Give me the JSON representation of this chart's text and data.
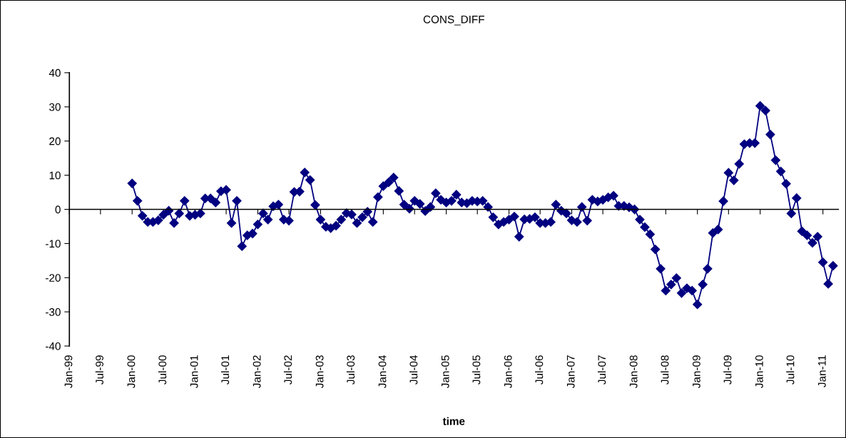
{
  "chart_data": {
    "type": "line",
    "title": "CONS_DIFF",
    "xlabel": "time",
    "x": [
      "2000-01",
      "2000-02",
      "2000-03",
      "2000-04",
      "2000-05",
      "2000-06",
      "2000-07",
      "2000-08",
      "2000-09",
      "2000-10",
      "2000-11",
      "2000-12",
      "2001-01",
      "2001-02",
      "2001-03",
      "2001-04",
      "2001-05",
      "2001-06",
      "2001-07",
      "2001-08",
      "2001-09",
      "2001-10",
      "2001-11",
      "2001-12",
      "2002-01",
      "2002-02",
      "2002-03",
      "2002-04",
      "2002-05",
      "2002-06",
      "2002-07",
      "2002-08",
      "2002-09",
      "2002-10",
      "2002-11",
      "2002-12",
      "2003-01",
      "2003-02",
      "2003-03",
      "2003-04",
      "2003-05",
      "2003-06",
      "2003-07",
      "2003-08",
      "2003-09",
      "2003-10",
      "2003-11",
      "2003-12",
      "2004-01",
      "2004-02",
      "2004-03",
      "2004-04",
      "2004-05",
      "2004-06",
      "2004-07",
      "2004-08",
      "2004-09",
      "2004-10",
      "2004-11",
      "2004-12",
      "2005-01",
      "2005-02",
      "2005-03",
      "2005-04",
      "2005-05",
      "2005-06",
      "2005-07",
      "2005-08",
      "2005-09",
      "2005-10",
      "2005-11",
      "2005-12",
      "2006-01",
      "2006-02",
      "2006-03",
      "2006-04",
      "2006-05",
      "2006-06",
      "2006-07",
      "2006-08",
      "2006-09",
      "2006-10",
      "2006-11",
      "2006-12",
      "2007-01",
      "2007-02",
      "2007-03",
      "2007-04",
      "2007-05",
      "2007-06",
      "2007-07",
      "2007-08",
      "2007-09",
      "2007-10",
      "2007-11",
      "2007-12",
      "2008-01",
      "2008-02",
      "2008-03",
      "2008-04",
      "2008-05",
      "2008-06",
      "2008-07",
      "2008-08",
      "2008-09",
      "2008-10",
      "2008-11",
      "2008-12",
      "2009-01",
      "2009-02",
      "2009-03",
      "2009-04",
      "2009-05",
      "2009-06",
      "2009-07",
      "2009-08",
      "2009-09",
      "2009-10",
      "2009-11",
      "2009-12",
      "2010-01",
      "2010-02",
      "2010-03",
      "2010-04",
      "2010-05",
      "2010-06",
      "2010-07",
      "2010-08",
      "2010-09",
      "2010-10",
      "2010-11",
      "2010-12",
      "2011-01",
      "2011-02",
      "2011-03"
    ],
    "series": [
      {
        "color": "#000080",
        "values": [
          7.6,
          2.5,
          -1.9,
          -3.7,
          -3.7,
          -3.2,
          -1.6,
          -0.4,
          -4.0,
          -1.2,
          2.5,
          -1.9,
          -1.6,
          -1.2,
          3.2,
          3.2,
          2.0,
          5.3,
          5.7,
          -4.0,
          2.5,
          -10.8,
          -7.6,
          -7.1,
          -4.4,
          -1.2,
          -3.0,
          0.9,
          1.4,
          -3.0,
          -3.3,
          5.1,
          5.2,
          10.8,
          8.6,
          1.3,
          -3.0,
          -5.1,
          -5.5,
          -4.8,
          -3.0,
          -1.1,
          -1.5,
          -4.0,
          -2.3,
          -0.7,
          -3.7,
          3.6,
          6.8,
          7.9,
          9.3,
          5.4,
          1.4,
          0.2,
          2.5,
          1.6,
          -0.5,
          0.7,
          4.7,
          2.8,
          2.0,
          2.5,
          4.3,
          2.0,
          1.8,
          2.5,
          2.3,
          2.5,
          0.7,
          -2.3,
          -4.4,
          -3.7,
          -3.0,
          -2.1,
          -8.0,
          -2.9,
          -2.8,
          -2.3,
          -4.0,
          -4.0,
          -3.7,
          1.4,
          -0.4,
          -1.2,
          -3.2,
          -3.7,
          0.7,
          -3.3,
          2.8,
          2.3,
          2.8,
          3.5,
          4.0,
          1.0,
          1.0,
          0.6,
          0.0,
          -3.0,
          -5.2,
          -7.3,
          -11.7,
          -17.4,
          -23.8,
          -22.0,
          -20.1,
          -24.5,
          -23.1,
          -23.8,
          -27.8,
          -22.0,
          -17.4,
          -6.9,
          -5.9,
          2.4,
          10.7,
          8.5,
          13.3,
          19.1,
          19.4,
          19.4,
          30.3,
          28.9,
          21.9,
          14.4,
          11.1,
          7.5,
          -1.2,
          3.3,
          -6.4,
          -7.6,
          -9.8,
          -8.0,
          -15.5,
          -21.8,
          -16.5
        ]
      }
    ],
    "marker": "diamond",
    "line_style": "solid",
    "xlim": [
      "1999-01",
      "2011-04"
    ],
    "xticks": [
      {
        "value": "1999-01",
        "label": "Jan-99"
      },
      {
        "value": "1999-07",
        "label": "Jul-99"
      },
      {
        "value": "2000-01",
        "label": "Jan-00"
      },
      {
        "value": "2000-07",
        "label": "Jul-00"
      },
      {
        "value": "2001-01",
        "label": "Jan-01"
      },
      {
        "value": "2001-07",
        "label": "Jul-01"
      },
      {
        "value": "2002-01",
        "label": "Jan-02"
      },
      {
        "value": "2002-07",
        "label": "Jul-02"
      },
      {
        "value": "2003-01",
        "label": "Jan-03"
      },
      {
        "value": "2003-07",
        "label": "Jul-03"
      },
      {
        "value": "2004-01",
        "label": "Jan-04"
      },
      {
        "value": "2004-07",
        "label": "Jul-04"
      },
      {
        "value": "2005-01",
        "label": "Jan-05"
      },
      {
        "value": "2005-07",
        "label": "Jul-05"
      },
      {
        "value": "2006-01",
        "label": "Jan-06"
      },
      {
        "value": "2006-07",
        "label": "Jul-06"
      },
      {
        "value": "2007-01",
        "label": "Jan-07"
      },
      {
        "value": "2007-07",
        "label": "Jul-07"
      },
      {
        "value": "2008-01",
        "label": "Jan-08"
      },
      {
        "value": "2008-07",
        "label": "Jul-08"
      },
      {
        "value": "2009-01",
        "label": "Jan-09"
      },
      {
        "value": "2009-07",
        "label": "Jul-09"
      },
      {
        "value": "2010-01",
        "label": "Jan-10"
      },
      {
        "value": "2010-07",
        "label": "Jul-10"
      },
      {
        "value": "2011-01",
        "label": "Jan-11"
      }
    ],
    "ylim": [
      -40,
      40
    ],
    "yticks": [
      -40,
      -30,
      -20,
      -10,
      0,
      10,
      20,
      30,
      40
    ]
  }
}
